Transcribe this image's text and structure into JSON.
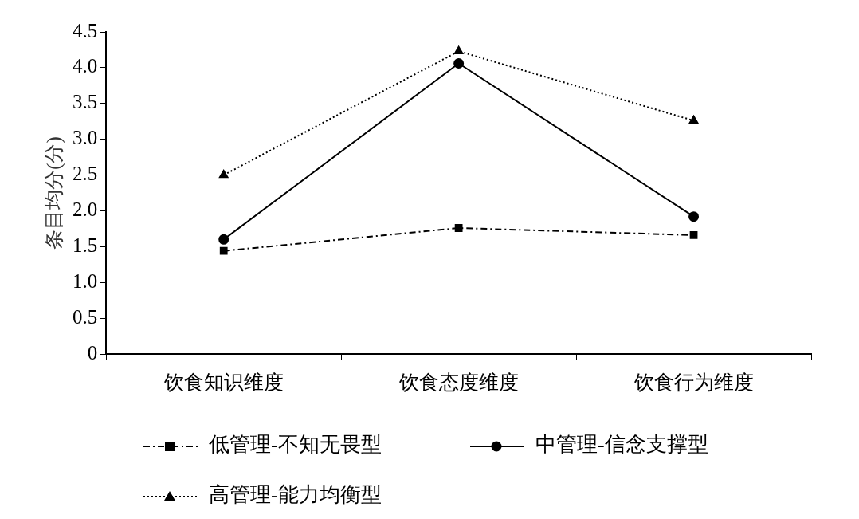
{
  "chart_data": {
    "type": "line",
    "ylabel": "条目均分(分)",
    "categories": [
      "饮食知识维度",
      "饮食态度维度",
      "饮食行为维度"
    ],
    "series": [
      {
        "name": "低管理-不知无畏型",
        "color": "#000000",
        "values": [
          1.44,
          1.76,
          1.66
        ],
        "marker": "square",
        "line_style": "dashed"
      },
      {
        "name": "中管理-信念支撑型",
        "color": "#000000",
        "values": [
          1.6,
          4.06,
          1.92
        ],
        "marker": "circle",
        "line_style": "solid"
      },
      {
        "name": "高管理-能力均衡型",
        "color": "#000000",
        "values": [
          2.5,
          4.23,
          3.26
        ],
        "marker": "triangle",
        "line_style": "dotted"
      }
    ],
    "ylim": [
      0,
      4.5
    ],
    "yticks": [
      0,
      {
        "value": 0.5,
        "label": "0.5"
      },
      {
        "value": 1,
        "label": "1.0"
      },
      {
        "value": 1.5,
        "label": "1.5"
      },
      {
        "value": 2,
        "label": "2.0"
      },
      {
        "value": 2.5,
        "label": "2.5"
      },
      {
        "value": 3,
        "label": "3.0"
      },
      {
        "value": 3.5,
        "label": "3.5"
      },
      {
        "value": 4,
        "label": "4.0"
      },
      {
        "value": 4.5,
        "label": "4.5"
      }
    ],
    "grid": false,
    "legend": "bottom"
  }
}
